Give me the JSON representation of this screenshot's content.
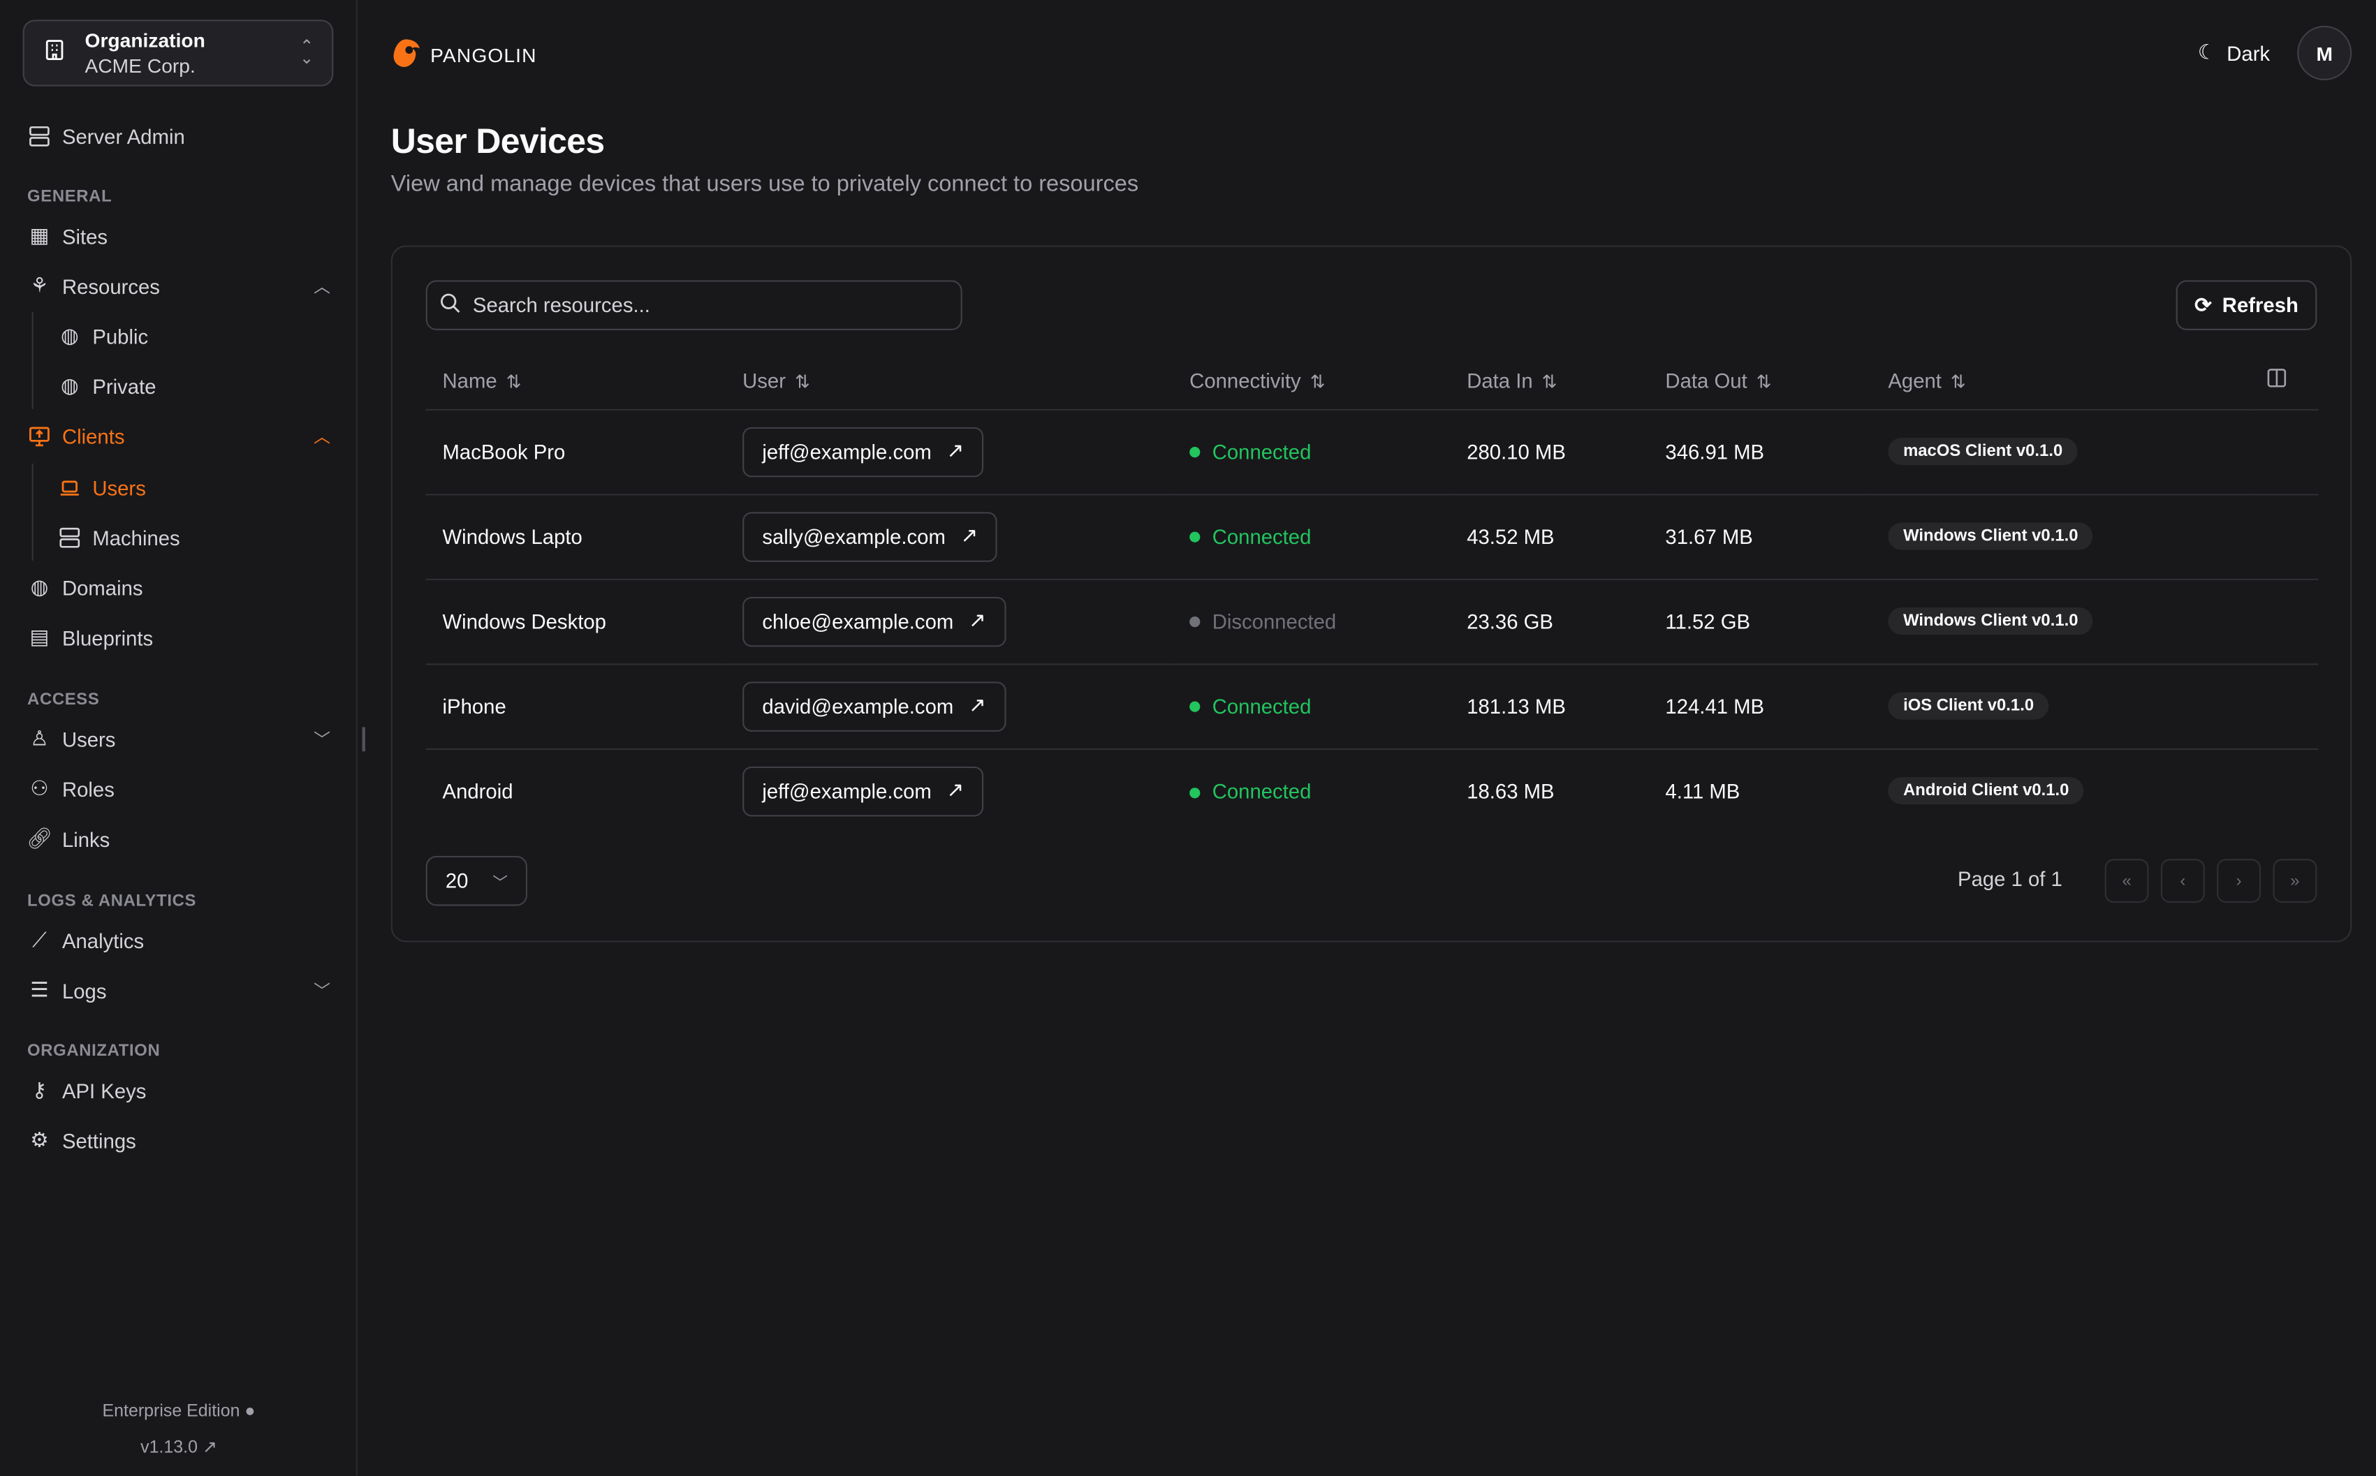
{
  "org": {
    "label": "Organization",
    "name": "ACME Corp."
  },
  "sidebar": {
    "server_admin": "Server Admin",
    "sections": {
      "general": "GENERAL",
      "access": "ACCESS",
      "logs": "LOGS & ANALYTICS",
      "organization": "ORGANIZATION"
    },
    "items": {
      "sites": "Sites",
      "resources": "Resources",
      "public": "Public",
      "private": "Private",
      "clients": "Clients",
      "users_client": "Users",
      "machines": "Machines",
      "domains": "Domains",
      "blueprints": "Blueprints",
      "users": "Users",
      "roles": "Roles",
      "links": "Links",
      "analytics": "Analytics",
      "logs": "Logs",
      "api_keys": "API Keys",
      "settings": "Settings"
    },
    "footer": {
      "edition": "Enterprise Edition",
      "version": "v1.13.0"
    }
  },
  "brand": {
    "name": "PANGOLIN",
    "accent": "#f97316"
  },
  "header": {
    "theme": "Dark",
    "avatar": "M"
  },
  "page": {
    "title": "User Devices",
    "subtitle": "View and manage devices that users use to privately connect to resources"
  },
  "toolbar": {
    "search_placeholder": "Search resources...",
    "refresh": "Refresh"
  },
  "table": {
    "columns": [
      "Name",
      "User",
      "Connectivity",
      "Data In",
      "Data Out",
      "Agent"
    ],
    "rows": [
      {
        "name": "MacBook Pro",
        "user": "jeff@example.com",
        "status": "Connected",
        "data_in": "280.10 MB",
        "data_out": "346.91 MB",
        "agent": "macOS Client v0.1.0"
      },
      {
        "name": "Windows Lapto",
        "user": "sally@example.com",
        "status": "Connected",
        "data_in": "43.52 MB",
        "data_out": "31.67 MB",
        "agent": "Windows Client v0.1.0"
      },
      {
        "name": "Windows Desktop",
        "user": "chloe@example.com",
        "status": "Disconnected",
        "data_in": "23.36 GB",
        "data_out": "11.52 GB",
        "agent": "Windows Client v0.1.0"
      },
      {
        "name": "iPhone",
        "user": "david@example.com",
        "status": "Connected",
        "data_in": "181.13 MB",
        "data_out": "124.41 MB",
        "agent": "iOS Client v0.1.0"
      },
      {
        "name": "Android",
        "user": "jeff@example.com",
        "status": "Connected",
        "data_in": "18.63 MB",
        "data_out": "4.11 MB",
        "agent": "Android Client v0.1.0"
      }
    ],
    "status_colors": {
      "Connected": "#22c55e",
      "Disconnected": "#71717a"
    }
  },
  "pagination": {
    "page_size": "20",
    "page_info": "Page 1 of 1"
  }
}
